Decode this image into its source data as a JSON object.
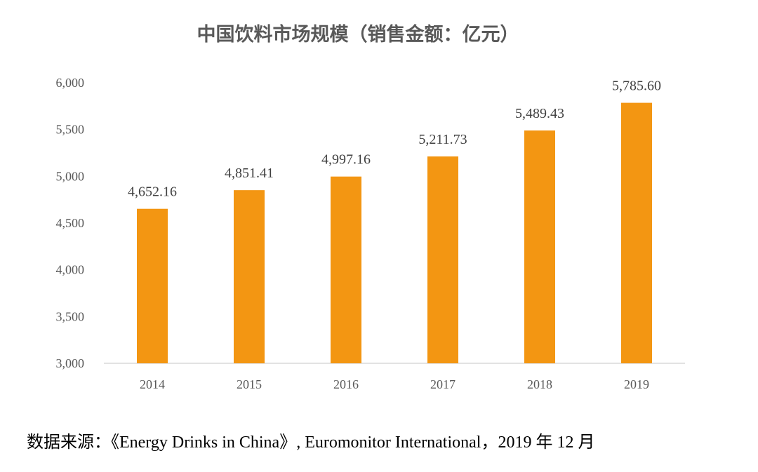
{
  "chart_data": {
    "type": "bar",
    "title": "中国饮料市场规模（销售金额：亿元）",
    "categories": [
      "2014",
      "2015",
      "2016",
      "2017",
      "2018",
      "2019"
    ],
    "values": [
      4652.16,
      4851.41,
      4997.16,
      5211.73,
      5489.43,
      5785.6
    ],
    "value_labels": [
      "4,652.16",
      "4,851.41",
      "4,997.16",
      "5,211.73",
      "5,489.43",
      "5,785.60"
    ],
    "ylim": [
      3000,
      6000
    ],
    "yticks": [
      3000,
      3500,
      4000,
      4500,
      5000,
      5500,
      6000
    ],
    "ytick_labels": [
      "3,000",
      "3,500",
      "4,000",
      "4,500",
      "5,000",
      "5,500",
      "6,000"
    ],
    "bar_color": "#f39612",
    "grid": false,
    "legend": "none",
    "xlabel": "",
    "ylabel": ""
  },
  "footer": {
    "source": "数据来源：《Energy Drinks in China》, Euromonitor International，2019 年 12 月"
  }
}
